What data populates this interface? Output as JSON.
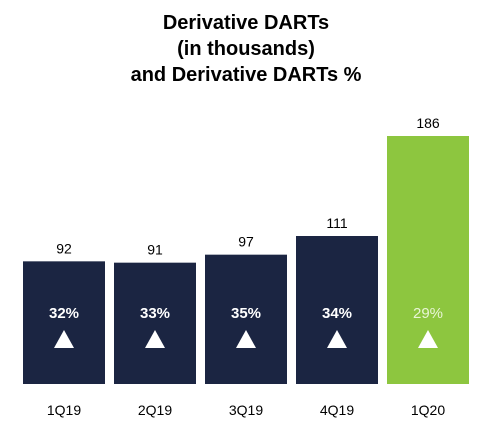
{
  "chart_data": {
    "type": "bar",
    "title": [
      "Derivative DARTs",
      "(in thousands)",
      "and Derivative DARTs %"
    ],
    "categories": [
      "1Q19",
      "2Q19",
      "3Q19",
      "4Q19",
      "1Q20"
    ],
    "values": [
      92,
      91,
      97,
      111,
      186
    ],
    "percent_labels": [
      "32%",
      "33%",
      "35%",
      "34%",
      "29%"
    ],
    "indicator": "up-triangle",
    "bar_colors": [
      "#1b2542",
      "#1b2542",
      "#1b2542",
      "#1b2542",
      "#8dc63f"
    ],
    "percent_colors": [
      "#ffffff",
      "#ffffff",
      "#ffffff",
      "#ffffff",
      "#e9f5d6"
    ],
    "ylim": [
      0,
      186
    ],
    "xlabel": "",
    "ylabel": "",
    "grid": false,
    "legend": "none"
  }
}
